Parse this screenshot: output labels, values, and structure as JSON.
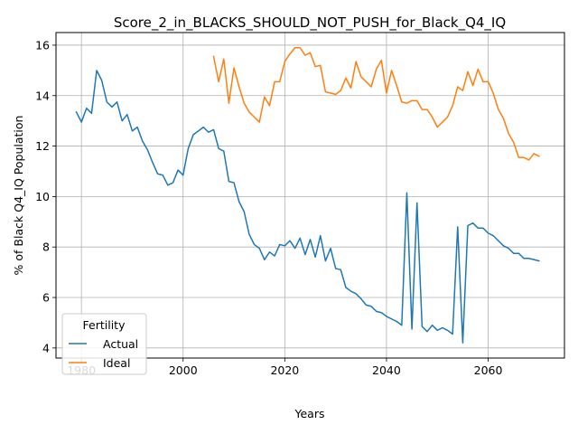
{
  "chart_data": {
    "type": "line",
    "title": "Score_2_in_BLACKS_SHOULD_NOT_PUSH_for_Black_Q4_IQ",
    "xlabel": "Years",
    "ylabel": "% of Black Q4_IQ Population",
    "xlim": [
      1975,
      2075
    ],
    "ylim": [
      3.6,
      16.5
    ],
    "xticks": [
      1980,
      2000,
      2020,
      2040,
      2060
    ],
    "yticks": [
      4,
      6,
      8,
      10,
      12,
      14,
      16
    ],
    "grid": true,
    "legend": {
      "title": "Fertility",
      "position": "lower-left"
    },
    "series": [
      {
        "name": "Actual",
        "color": "#1f77b4",
        "x": [
          1979,
          1980,
          1981,
          1982,
          1983,
          1984,
          1985,
          1986,
          1987,
          1988,
          1989,
          1990,
          1991,
          1992,
          1993,
          1994,
          1995,
          1996,
          1997,
          1998,
          1999,
          2000,
          2001,
          2002,
          2003,
          2004,
          2005,
          2006,
          2007,
          2008,
          2009,
          2010,
          2011,
          2012,
          2013,
          2014,
          2015,
          2016,
          2017,
          2018,
          2019,
          2020,
          2021,
          2022,
          2023,
          2024,
          2025,
          2026,
          2027,
          2028,
          2029,
          2030,
          2031,
          2032,
          2033,
          2034,
          2035,
          2036,
          2037,
          2038,
          2039,
          2040,
          2041,
          2042,
          2043,
          2044,
          2045,
          2046,
          2047,
          2048,
          2049,
          2050,
          2051,
          2052,
          2053,
          2054,
          2055,
          2056,
          2057,
          2058,
          2059,
          2060,
          2061,
          2062,
          2063,
          2064,
          2065,
          2066,
          2067,
          2068,
          2069,
          2070
        ],
        "values": [
          13.35,
          12.95,
          13.5,
          13.3,
          15.0,
          14.6,
          13.75,
          13.55,
          13.75,
          13.0,
          13.25,
          12.6,
          12.75,
          12.2,
          11.85,
          11.35,
          10.9,
          10.85,
          10.45,
          10.55,
          11.05,
          10.85,
          11.9,
          12.45,
          12.6,
          12.75,
          12.55,
          12.65,
          11.9,
          11.8,
          10.6,
          10.55,
          9.8,
          9.4,
          8.5,
          8.1,
          7.95,
          7.5,
          7.8,
          7.65,
          8.1,
          8.05,
          8.25,
          7.95,
          8.35,
          7.7,
          8.3,
          7.6,
          8.45,
          7.45,
          7.95,
          7.15,
          7.1,
          6.4,
          6.25,
          6.15,
          5.95,
          5.7,
          5.65,
          5.45,
          5.4,
          5.25,
          5.15,
          5.05,
          4.9,
          10.15,
          4.75,
          9.75,
          4.85,
          4.65,
          4.9,
          4.7,
          4.8,
          4.7,
          4.55,
          8.8,
          4.2,
          8.85,
          8.95,
          8.75,
          8.75,
          8.55,
          8.45,
          8.25,
          8.05,
          7.95,
          7.75,
          7.75,
          7.55,
          7.55,
          7.5,
          7.45
        ]
      },
      {
        "name": "Ideal",
        "color": "#ff7f0e",
        "x": [
          2006,
          2007,
          2008,
          2009,
          2010,
          2011,
          2012,
          2013,
          2014,
          2015,
          2016,
          2017,
          2018,
          2019,
          2020,
          2021,
          2022,
          2023,
          2024,
          2025,
          2026,
          2027,
          2028,
          2029,
          2030,
          2031,
          2032,
          2033,
          2034,
          2035,
          2036,
          2037,
          2038,
          2039,
          2040,
          2041,
          2042,
          2043,
          2044,
          2045,
          2046,
          2047,
          2048,
          2049,
          2050,
          2051,
          2052,
          2053,
          2054,
          2055,
          2056,
          2057,
          2058,
          2059,
          2060,
          2061,
          2062,
          2063,
          2064,
          2065,
          2066,
          2067,
          2068,
          2069,
          2070
        ],
        "values": [
          15.55,
          14.55,
          15.45,
          13.7,
          15.1,
          14.35,
          13.7,
          13.35,
          13.15,
          12.95,
          13.95,
          13.6,
          14.55,
          14.55,
          15.35,
          15.65,
          15.9,
          15.9,
          15.6,
          15.7,
          15.15,
          15.2,
          14.15,
          14.1,
          14.05,
          14.2,
          14.7,
          14.3,
          15.35,
          14.75,
          14.55,
          14.35,
          15.05,
          15.4,
          14.1,
          15.0,
          14.4,
          13.75,
          13.7,
          13.8,
          13.8,
          13.45,
          13.45,
          13.15,
          12.75,
          12.95,
          13.15,
          13.6,
          14.35,
          14.2,
          14.95,
          14.4,
          15.05,
          14.55,
          14.55,
          14.1,
          13.45,
          13.1,
          12.5,
          12.15,
          11.55,
          11.55,
          11.45,
          11.7,
          11.6
        ]
      }
    ]
  }
}
